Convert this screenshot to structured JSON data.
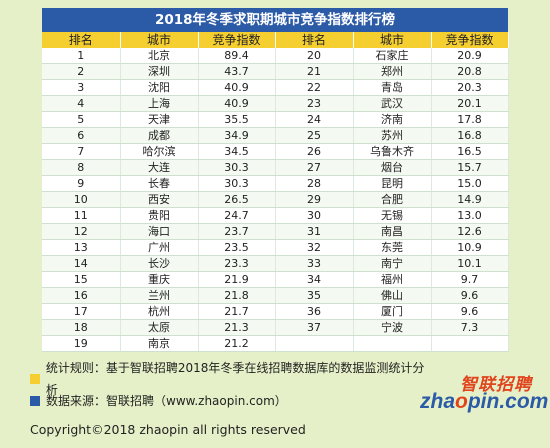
{
  "title": "2018年冬季求职期城市竞争指数排行榜",
  "headers": [
    "排名",
    "城市",
    "竞争指数",
    "排名",
    "城市",
    "竞争指数"
  ],
  "left_rows": [
    [
      "1",
      "北京",
      "89.4"
    ],
    [
      "2",
      "深圳",
      "43.7"
    ],
    [
      "3",
      "沈阳",
      "40.9"
    ],
    [
      "4",
      "上海",
      "40.9"
    ],
    [
      "5",
      "天津",
      "35.5"
    ],
    [
      "6",
      "成都",
      "34.9"
    ],
    [
      "7",
      "哈尔滨",
      "34.5"
    ],
    [
      "8",
      "大连",
      "30.3"
    ],
    [
      "9",
      "长春",
      "30.3"
    ],
    [
      "10",
      "西安",
      "26.5"
    ],
    [
      "11",
      "贵阳",
      "24.7"
    ],
    [
      "12",
      "海口",
      "23.7"
    ],
    [
      "13",
      "广州",
      "23.5"
    ],
    [
      "14",
      "长沙",
      "23.3"
    ],
    [
      "15",
      "重庆",
      "21.9"
    ],
    [
      "16",
      "兰州",
      "21.8"
    ],
    [
      "17",
      "杭州",
      "21.7"
    ],
    [
      "18",
      "太原",
      "21.3"
    ],
    [
      "19",
      "南京",
      "21.2"
    ]
  ],
  "right_rows": [
    [
      "20",
      "石家庄",
      "20.9"
    ],
    [
      "21",
      "郑州",
      "20.8"
    ],
    [
      "22",
      "青岛",
      "20.3"
    ],
    [
      "23",
      "武汉",
      "20.1"
    ],
    [
      "24",
      "济南",
      "17.8"
    ],
    [
      "25",
      "苏州",
      "16.8"
    ],
    [
      "26",
      "乌鲁木齐",
      "16.5"
    ],
    [
      "27",
      "烟台",
      "15.7"
    ],
    [
      "28",
      "昆明",
      "15.0"
    ],
    [
      "29",
      "合肥",
      "14.9"
    ],
    [
      "30",
      "无锡",
      "13.0"
    ],
    [
      "31",
      "南昌",
      "12.6"
    ],
    [
      "32",
      "东莞",
      "10.9"
    ],
    [
      "33",
      "南宁",
      "10.1"
    ],
    [
      "34",
      "福州",
      "9.7"
    ],
    [
      "35",
      "佛山",
      "9.6"
    ],
    [
      "36",
      "厦门",
      "9.6"
    ],
    [
      "37",
      "宁波",
      "7.3"
    ],
    [
      "",
      "",
      ""
    ]
  ],
  "notes": {
    "rule": "统计规则：基于智联招聘2018年冬季在线招聘数据库的数据监测统计分析",
    "source": "数据来源：智联招聘（www.zhaopin.com）"
  },
  "copyright": "Copyright©2018 zhaopin all rights reserved",
  "logo": {
    "cn": "智联招聘",
    "en_pre": "zha",
    "en_o": "o",
    "en_post": "pin.com"
  },
  "colors": {
    "title_bg": "#2b5aa6",
    "header_bg": "#f5cf2f",
    "page_bg": "#e6f0c8",
    "brand_orange": "#e0451e"
  }
}
